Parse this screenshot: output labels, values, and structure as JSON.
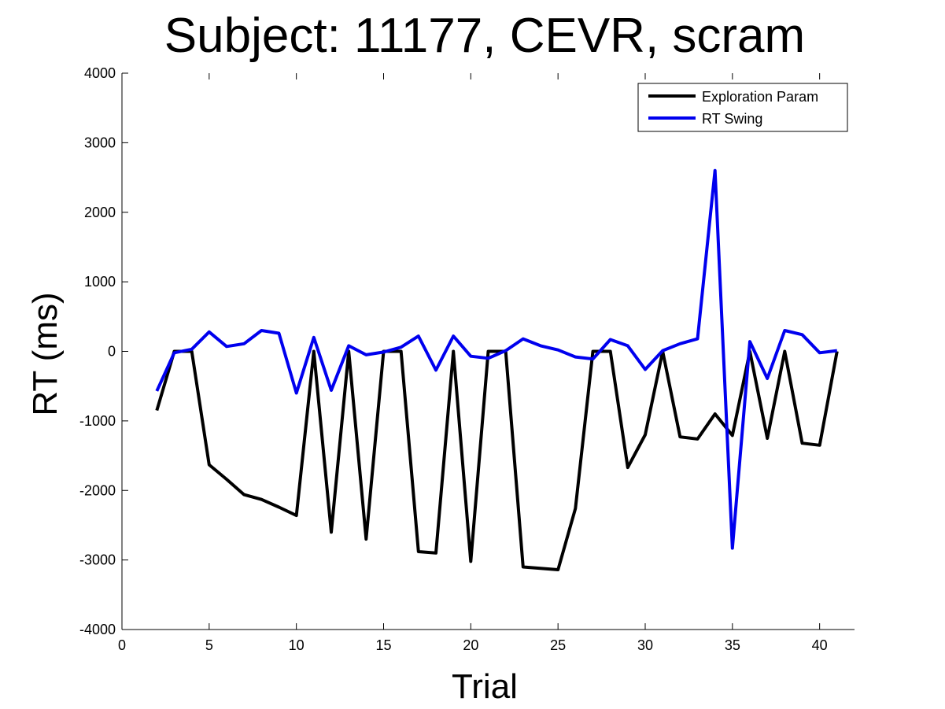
{
  "chart_data": {
    "type": "line",
    "title": "Subject: 11177, CEVR, scram",
    "xlabel": "Trial",
    "ylabel": "RT (ms)",
    "xlim": [
      0,
      42
    ],
    "ylim": [
      -4000,
      4000
    ],
    "xticks": [
      0,
      5,
      10,
      15,
      20,
      25,
      30,
      35,
      40
    ],
    "yticks": [
      -4000,
      -3000,
      -2000,
      -1000,
      0,
      1000,
      2000,
      3000,
      4000
    ],
    "grid": false,
    "legend_position": "top-right",
    "series": [
      {
        "name": "Exploration Param",
        "color": "#000000",
        "x": [
          2,
          3,
          4,
          5,
          6,
          7,
          8,
          9,
          10,
          11,
          12,
          13,
          14,
          15,
          16,
          17,
          18,
          19,
          20,
          21,
          22,
          23,
          24,
          25,
          26,
          27,
          28,
          29,
          30,
          31,
          32,
          33,
          34,
          35,
          36,
          37,
          38,
          39,
          40,
          41
        ],
        "values": [
          -850,
          0,
          0,
          -1630,
          -1840,
          -2060,
          -2130,
          -2240,
          -2360,
          0,
          -2600,
          0,
          -2700,
          0,
          0,
          -2880,
          -2900,
          0,
          -3020,
          0,
          0,
          -3100,
          -3120,
          -3140,
          -2260,
          0,
          0,
          -1670,
          -1200,
          0,
          -1230,
          -1260,
          -900,
          -1210,
          0,
          -1250,
          0,
          -1320,
          -1350,
          0
        ]
      },
      {
        "name": "RT Swing",
        "color": "#0000ee",
        "x": [
          2,
          3,
          4,
          5,
          6,
          7,
          8,
          9,
          10,
          11,
          12,
          13,
          14,
          15,
          16,
          17,
          18,
          19,
          20,
          21,
          22,
          23,
          24,
          25,
          26,
          27,
          28,
          29,
          30,
          31,
          32,
          33,
          34,
          35,
          36,
          37,
          38,
          39,
          40,
          41
        ],
        "values": [
          -570,
          -20,
          30,
          280,
          70,
          110,
          300,
          260,
          -600,
          200,
          -560,
          80,
          -50,
          -10,
          60,
          220,
          -270,
          220,
          -70,
          -100,
          10,
          180,
          80,
          20,
          -80,
          -110,
          170,
          80,
          -260,
          10,
          110,
          180,
          2600,
          -2830,
          140,
          -390,
          300,
          240,
          -20,
          10
        ]
      }
    ]
  }
}
